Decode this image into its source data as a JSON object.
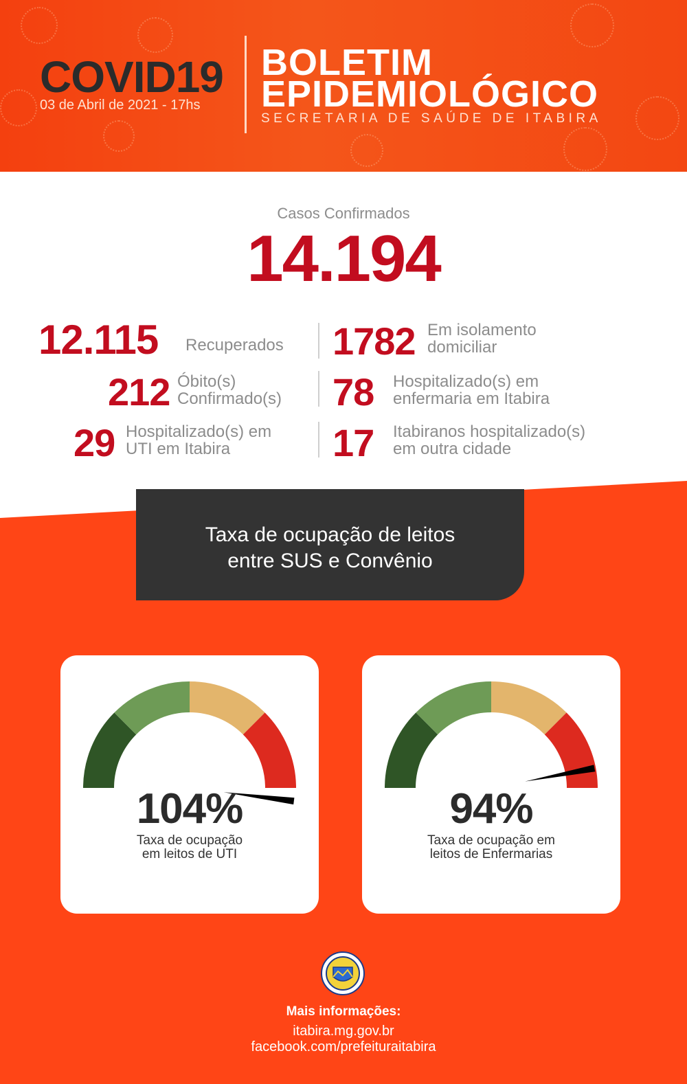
{
  "header": {
    "title": "COVID19",
    "date": "03 de Abril de 2021 - 17hs",
    "bulletin_line1": "BOLETIM",
    "bulletin_line2": "EPIDEMIOLÓGICO",
    "subtitle": "SECRETARIA DE SAÚDE DE ITABIRA"
  },
  "confirmed": {
    "label": "Casos Confirmados",
    "value": "14.194"
  },
  "stats": {
    "recovered": {
      "value": "12.115",
      "label": "Recuperados"
    },
    "home_isolation": {
      "value": "1782",
      "label_line1": "Em isolamento",
      "label_line2": "domiciliar"
    },
    "deaths": {
      "value": "212",
      "label_line1": "Óbito(s)",
      "label_line2": "Confirmado(s)"
    },
    "ward": {
      "value": "78",
      "label_line1": "Hospitalizado(s) em",
      "label_line2": "enfermaria em Itabira"
    },
    "icu": {
      "value": "29",
      "label_line1": "Hospitalizado(s) em",
      "label_line2": "UTI em Itabira"
    },
    "other_city": {
      "value": "17",
      "label_line1": "Itabiranos hospitalizado(s)",
      "label_line2": "em outra cidade"
    }
  },
  "banner": {
    "line1": "Taxa de ocupação de leitos",
    "line2": "entre SUS e Convênio"
  },
  "gauges": [
    {
      "value_text": "104%",
      "value": 104,
      "caption_line1": "Taxa de ocupação",
      "caption_line2": "em leitos de UTI"
    },
    {
      "value_text": "94%",
      "value": 94,
      "caption_line1": "Taxa de ocupação em",
      "caption_line2": "leitos de Enfermarias"
    }
  ],
  "gauge_colors": [
    "#2f5526",
    "#6e9b56",
    "#e3b56c",
    "#dd2a1f"
  ],
  "footer": {
    "title": "Mais informações:",
    "link1": "itabira.mg.gov.br",
    "link2": "facebook.com/prefeituraitabira",
    "logo_text": "MUNICÍPIO DE ITABIRA · MINAS"
  },
  "colors": {
    "accent_red": "#c20d1f",
    "background_orange": "#ff4516",
    "dark": "#333333"
  }
}
